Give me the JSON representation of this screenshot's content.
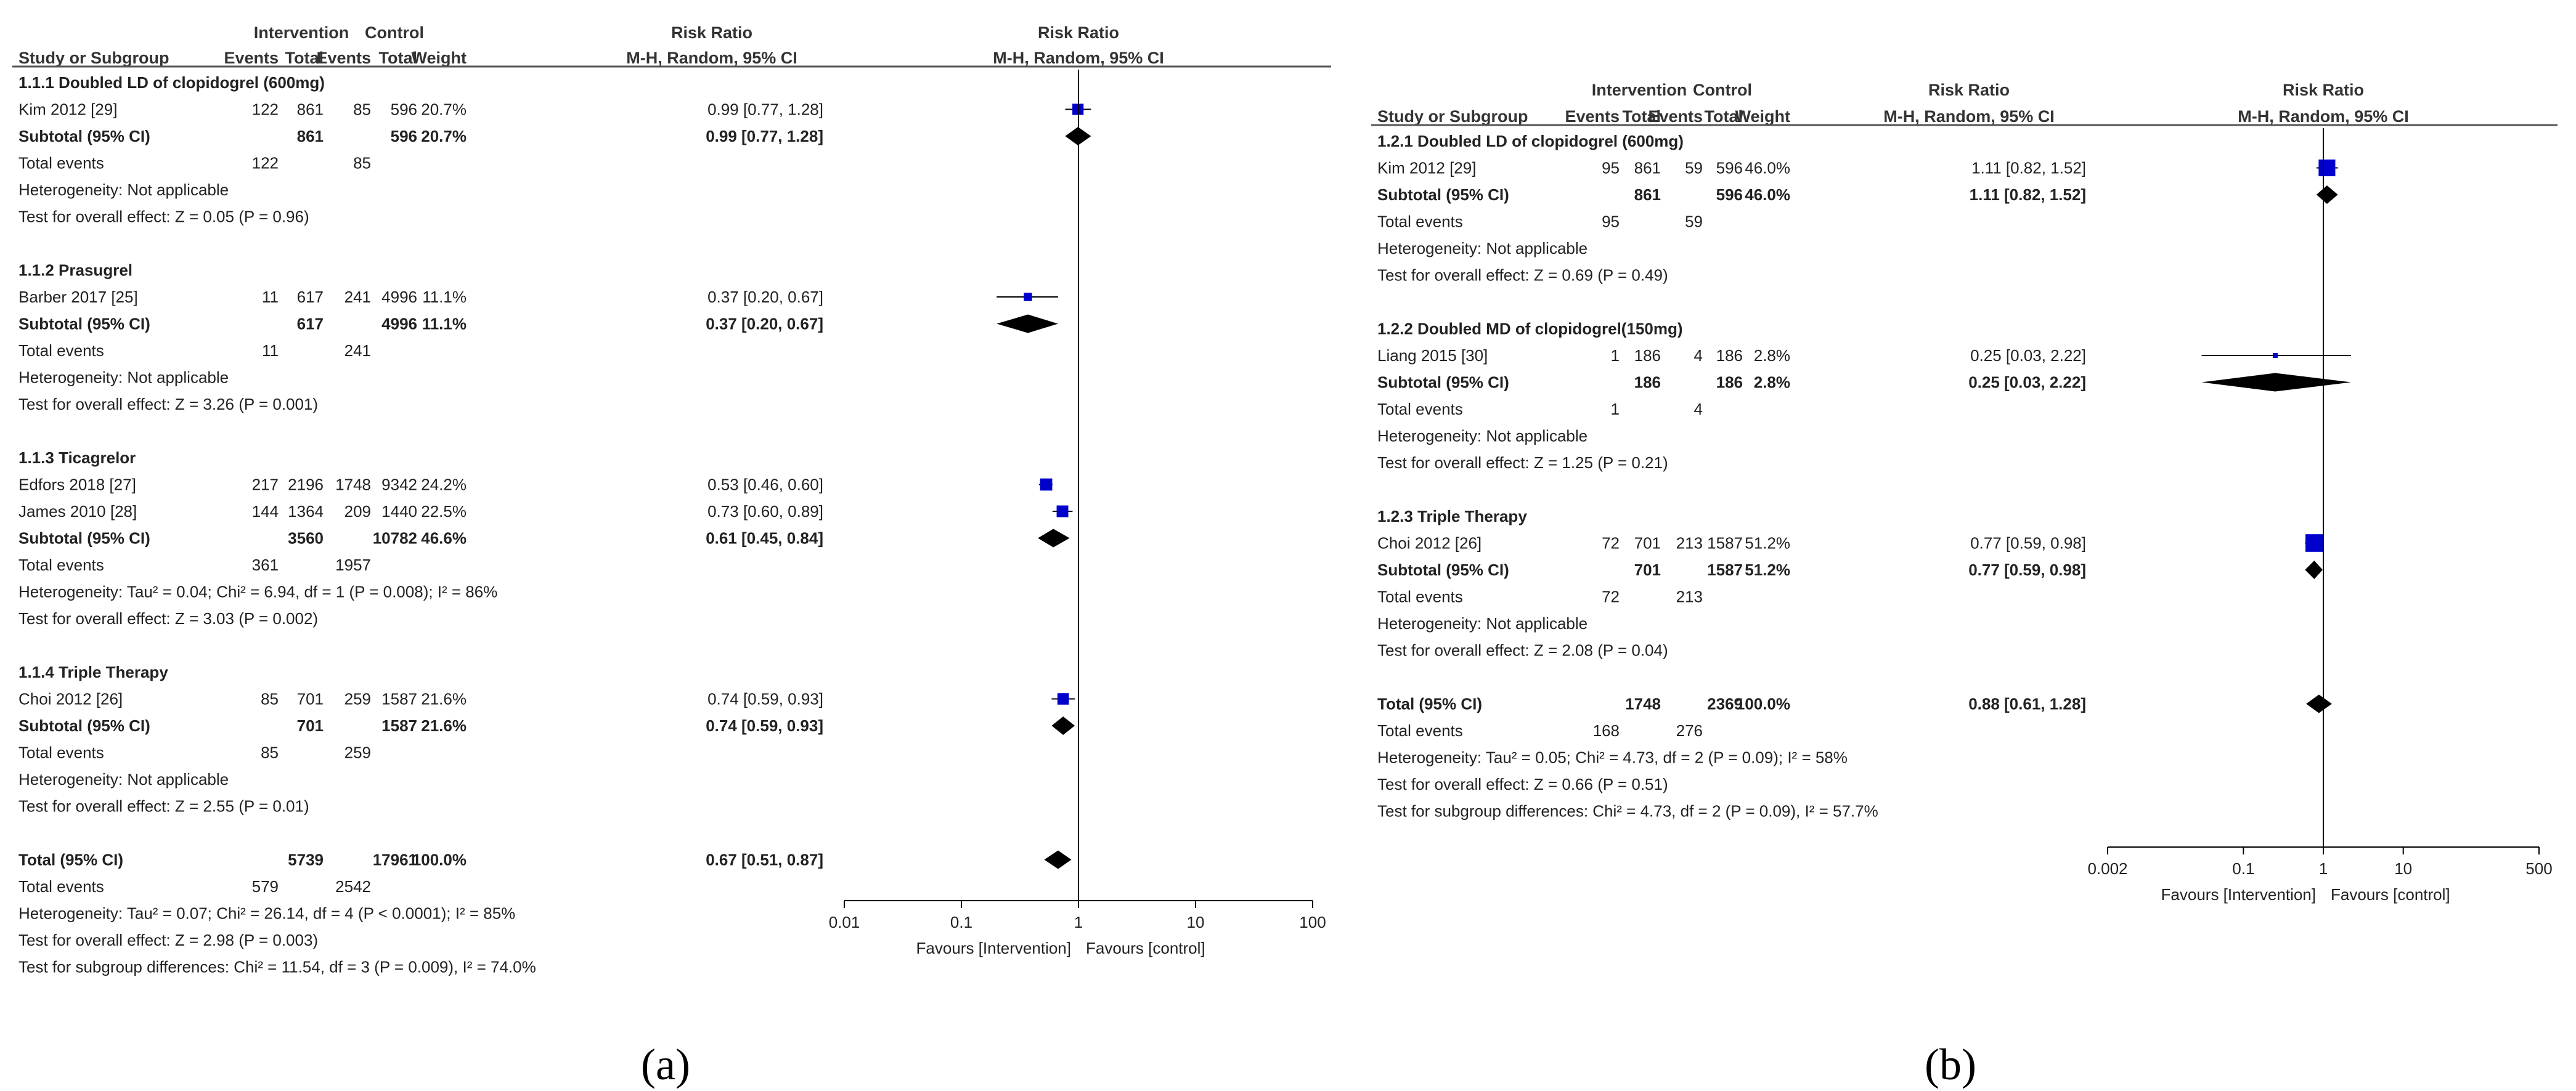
{
  "figure": {
    "caption_a": "(a)",
    "caption_b": "(b)"
  },
  "headers": {
    "intervention": "Intervention",
    "control": "Control",
    "risk_ratio": "Risk Ratio",
    "study": "Study or Subgroup",
    "events": "Events",
    "total": "Total",
    "weight": "Weight",
    "method": "M-H, Random, 95% CI"
  },
  "colors": {
    "marker": "#0000cc",
    "diamond": "#000000",
    "rule": "#555555",
    "text": "#222222"
  },
  "chart_data": [
    {
      "type": "forest",
      "panel": "a",
      "scale": "log",
      "xlim": [
        0.01,
        100
      ],
      "ticks": [
        "0.01",
        "0.1",
        "1",
        "10",
        "100"
      ],
      "xlabel_left": "Favours [Intervention]",
      "xlabel_right": "Favours [control]",
      "rows": [
        {
          "kind": "group",
          "label": "1.1.1 Doubled LD of clopidogrel (600mg)"
        },
        {
          "kind": "study",
          "label": "Kim 2012 [29]",
          "e1": "122",
          "n1": "861",
          "e2": "85",
          "n2": "596",
          "w": "20.7%",
          "ci": "0.99 [0.77, 1.28]",
          "est": 0.99,
          "lo": 0.77,
          "hi": 1.28
        },
        {
          "kind": "subtotal",
          "label": "Subtotal (95% CI)",
          "n1": "861",
          "n2": "596",
          "w": "20.7%",
          "ci": "0.99 [0.77, 1.28]",
          "est": 0.99,
          "lo": 0.77,
          "hi": 1.28
        },
        {
          "kind": "events",
          "label": "Total events",
          "e1": "122",
          "e2": "85"
        },
        {
          "kind": "note",
          "label": "Heterogeneity: Not applicable"
        },
        {
          "kind": "note",
          "label": "Test for overall effect: Z = 0.05 (P = 0.96)"
        },
        {
          "kind": "blank"
        },
        {
          "kind": "group",
          "label": "1.1.2 Prasugrel"
        },
        {
          "kind": "study",
          "label": "Barber 2017 [25]",
          "e1": "11",
          "n1": "617",
          "e2": "241",
          "n2": "4996",
          "w": "11.1%",
          "ci": "0.37 [0.20, 0.67]",
          "est": 0.37,
          "lo": 0.2,
          "hi": 0.67
        },
        {
          "kind": "subtotal",
          "label": "Subtotal (95% CI)",
          "n1": "617",
          "n2": "4996",
          "w": "11.1%",
          "ci": "0.37 [0.20, 0.67]",
          "est": 0.37,
          "lo": 0.2,
          "hi": 0.67
        },
        {
          "kind": "events",
          "label": "Total events",
          "e1": "11",
          "e2": "241"
        },
        {
          "kind": "note",
          "label": "Heterogeneity: Not applicable"
        },
        {
          "kind": "note",
          "label": "Test for overall effect: Z = 3.26 (P = 0.001)"
        },
        {
          "kind": "blank"
        },
        {
          "kind": "group",
          "label": "1.1.3 Ticagrelor"
        },
        {
          "kind": "study",
          "label": "Edfors 2018 [27]",
          "e1": "217",
          "n1": "2196",
          "e2": "1748",
          "n2": "9342",
          "w": "24.2%",
          "ci": "0.53 [0.46, 0.60]",
          "est": 0.53,
          "lo": 0.46,
          "hi": 0.6
        },
        {
          "kind": "study",
          "label": "James 2010 [28]",
          "e1": "144",
          "n1": "1364",
          "e2": "209",
          "n2": "1440",
          "w": "22.5%",
          "ci": "0.73 [0.60, 0.89]",
          "est": 0.73,
          "lo": 0.6,
          "hi": 0.89
        },
        {
          "kind": "subtotal",
          "label": "Subtotal (95% CI)",
          "n1": "3560",
          "n2": "10782",
          "w": "46.6%",
          "ci": "0.61 [0.45, 0.84]",
          "est": 0.61,
          "lo": 0.45,
          "hi": 0.84
        },
        {
          "kind": "events",
          "label": "Total events",
          "e1": "361",
          "e2": "1957"
        },
        {
          "kind": "note",
          "label": "Heterogeneity: Tau² = 0.04; Chi² = 6.94, df = 1 (P = 0.008); I² = 86%"
        },
        {
          "kind": "note",
          "label": "Test for overall effect: Z = 3.03 (P = 0.002)"
        },
        {
          "kind": "blank"
        },
        {
          "kind": "group",
          "label": "1.1.4 Triple Therapy"
        },
        {
          "kind": "study",
          "label": "Choi 2012 [26]",
          "e1": "85",
          "n1": "701",
          "e2": "259",
          "n2": "1587",
          "w": "21.6%",
          "ci": "0.74 [0.59, 0.93]",
          "est": 0.74,
          "lo": 0.59,
          "hi": 0.93
        },
        {
          "kind": "subtotal",
          "label": "Subtotal (95% CI)",
          "n1": "701",
          "n2": "1587",
          "w": "21.6%",
          "ci": "0.74 [0.59, 0.93]",
          "est": 0.74,
          "lo": 0.59,
          "hi": 0.93
        },
        {
          "kind": "events",
          "label": "Total events",
          "e1": "85",
          "e2": "259"
        },
        {
          "kind": "note",
          "label": "Heterogeneity: Not applicable"
        },
        {
          "kind": "note",
          "label": "Test for overall effect: Z = 2.55 (P = 0.01)"
        },
        {
          "kind": "blank"
        },
        {
          "kind": "total",
          "label": "Total (95% CI)",
          "n1": "5739",
          "n2": "17961",
          "w": "100.0%",
          "ci": "0.67 [0.51, 0.87]",
          "est": 0.67,
          "lo": 0.51,
          "hi": 0.87
        },
        {
          "kind": "events",
          "label": "Total events",
          "e1": "579",
          "e2": "2542"
        },
        {
          "kind": "note",
          "label": "Heterogeneity: Tau² = 0.07; Chi² = 26.14, df = 4 (P < 0.0001); I² = 85%"
        },
        {
          "kind": "note",
          "label": "Test for overall effect: Z = 2.98 (P = 0.003)"
        },
        {
          "kind": "note",
          "label": "Test for subgroup differences: Chi² = 11.54, df = 3 (P = 0.009), I² = 74.0%"
        }
      ]
    },
    {
      "type": "forest",
      "panel": "b",
      "scale": "log",
      "xlim": [
        0.002,
        500
      ],
      "ticks": [
        "0.002",
        "0.1",
        "1",
        "10",
        "500"
      ],
      "xlabel_left": "Favours [Intervention]",
      "xlabel_right": "Favours [control]",
      "rows": [
        {
          "kind": "group",
          "label": "1.2.1 Doubled LD of clopidogrel (600mg)"
        },
        {
          "kind": "study",
          "label": "Kim 2012 [29]",
          "e1": "95",
          "n1": "861",
          "e2": "59",
          "n2": "596",
          "w": "46.0%",
          "ci": "1.11 [0.82, 1.52]",
          "est": 1.11,
          "lo": 0.82,
          "hi": 1.52
        },
        {
          "kind": "subtotal",
          "label": "Subtotal (95% CI)",
          "n1": "861",
          "n2": "596",
          "w": "46.0%",
          "ci": "1.11 [0.82, 1.52]",
          "est": 1.11,
          "lo": 0.82,
          "hi": 1.52
        },
        {
          "kind": "events",
          "label": "Total events",
          "e1": "95",
          "e2": "59"
        },
        {
          "kind": "note",
          "label": "Heterogeneity: Not applicable"
        },
        {
          "kind": "note",
          "label": "Test for overall effect: Z = 0.69 (P = 0.49)"
        },
        {
          "kind": "blank"
        },
        {
          "kind": "group",
          "label": "1.2.2 Doubled MD of clopidogrel(150mg)"
        },
        {
          "kind": "study",
          "label": "Liang 2015 [30]",
          "e1": "1",
          "n1": "186",
          "e2": "4",
          "n2": "186",
          "w": "2.8%",
          "ci": "0.25 [0.03, 2.22]",
          "est": 0.25,
          "lo": 0.03,
          "hi": 2.22
        },
        {
          "kind": "subtotal",
          "label": "Subtotal (95% CI)",
          "n1": "186",
          "n2": "186",
          "w": "2.8%",
          "ci": "0.25 [0.03, 2.22]",
          "est": 0.25,
          "lo": 0.03,
          "hi": 2.22
        },
        {
          "kind": "events",
          "label": "Total events",
          "e1": "1",
          "e2": "4"
        },
        {
          "kind": "note",
          "label": "Heterogeneity: Not applicable"
        },
        {
          "kind": "note",
          "label": "Test for overall effect: Z = 1.25 (P = 0.21)"
        },
        {
          "kind": "blank"
        },
        {
          "kind": "group",
          "label": "1.2.3 Triple Therapy"
        },
        {
          "kind": "study",
          "label": "Choi 2012 [26]",
          "e1": "72",
          "n1": "701",
          "e2": "213",
          "n2": "1587",
          "w": "51.2%",
          "ci": "0.77 [0.59, 0.98]",
          "est": 0.77,
          "lo": 0.59,
          "hi": 0.98
        },
        {
          "kind": "subtotal",
          "label": "Subtotal (95% CI)",
          "n1": "701",
          "n2": "1587",
          "w": "51.2%",
          "ci": "0.77 [0.59, 0.98]",
          "est": 0.77,
          "lo": 0.59,
          "hi": 0.98
        },
        {
          "kind": "events",
          "label": "Total events",
          "e1": "72",
          "e2": "213"
        },
        {
          "kind": "note",
          "label": "Heterogeneity: Not applicable"
        },
        {
          "kind": "note",
          "label": "Test for overall effect: Z = 2.08 (P = 0.04)"
        },
        {
          "kind": "blank"
        },
        {
          "kind": "total",
          "label": "Total (95% CI)",
          "n1": "1748",
          "n2": "2369",
          "w": "100.0%",
          "ci": "0.88 [0.61, 1.28]",
          "est": 0.88,
          "lo": 0.61,
          "hi": 1.28
        },
        {
          "kind": "events",
          "label": "Total events",
          "e1": "168",
          "e2": "276"
        },
        {
          "kind": "note",
          "label": "Heterogeneity: Tau² = 0.05; Chi² = 4.73, df = 2 (P = 0.09); I² = 58%"
        },
        {
          "kind": "note",
          "label": "Test for overall effect: Z = 0.66 (P = 0.51)"
        },
        {
          "kind": "note",
          "label": "Test for subgroup differences: Chi² = 4.73, df = 2 (P = 0.09), I² = 57.7%"
        }
      ]
    }
  ]
}
